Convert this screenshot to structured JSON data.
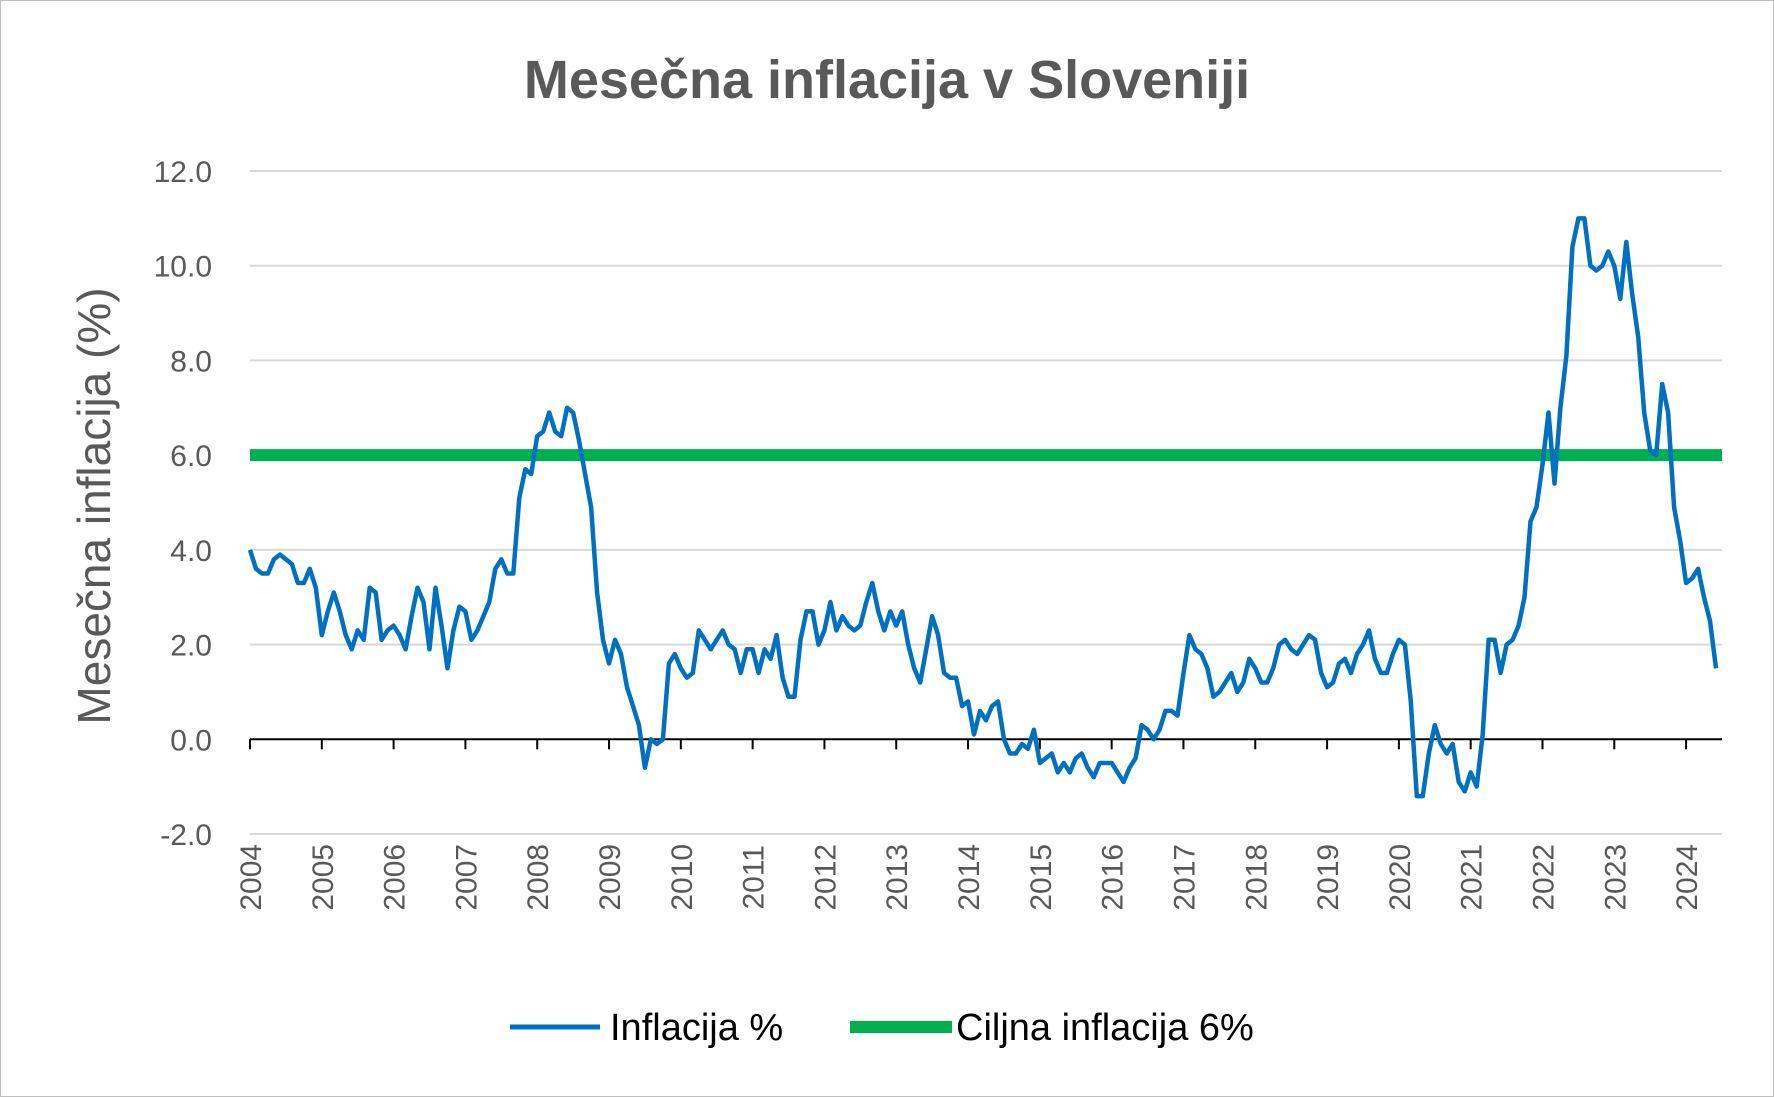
{
  "chart_data": {
    "type": "line",
    "title": "Mesečna inflacija v Sloveniji",
    "xlabel": "",
    "ylabel": "Mesečna inflacija (%)",
    "ylim": [
      -2.0,
      12.0
    ],
    "yticks": [
      "12.0",
      "10.0",
      "8.0",
      "6.0",
      "4.0",
      "2.0",
      "0.0",
      "-2.0"
    ],
    "xticks": [
      "2004",
      "2005",
      "2006",
      "2007",
      "2008",
      "2009",
      "2010",
      "2011",
      "2012",
      "2013",
      "2014",
      "2015",
      "2016",
      "2017",
      "2018",
      "2019",
      "2020",
      "2021",
      "2022",
      "2023",
      "2024"
    ],
    "grid": true,
    "legend_position": "bottom",
    "series": [
      {
        "name": "Inflacija %",
        "color": "#0070c0",
        "x_start": "2004-01",
        "frequency": "monthly",
        "values": [
          4.0,
          3.6,
          3.5,
          3.5,
          3.8,
          3.9,
          3.8,
          3.7,
          3.3,
          3.3,
          3.6,
          3.2,
          2.2,
          2.7,
          3.1,
          2.7,
          2.2,
          1.9,
          2.3,
          2.1,
          3.2,
          3.1,
          2.1,
          2.3,
          2.4,
          2.2,
          1.9,
          2.6,
          3.2,
          2.9,
          1.9,
          3.2,
          2.4,
          1.5,
          2.3,
          2.8,
          2.7,
          2.1,
          2.3,
          2.6,
          2.9,
          3.6,
          3.8,
          3.5,
          3.5,
          5.1,
          5.7,
          5.6,
          6.4,
          6.5,
          6.9,
          6.5,
          6.4,
          7.0,
          6.9,
          6.3,
          5.6,
          4.9,
          3.1,
          2.1,
          1.6,
          2.1,
          1.8,
          1.1,
          0.7,
          0.3,
          -0.6,
          0.0,
          -0.1,
          0.0,
          1.6,
          1.8,
          1.5,
          1.3,
          1.4,
          2.3,
          2.1,
          1.9,
          2.1,
          2.3,
          2.0,
          1.9,
          1.4,
          1.9,
          1.9,
          1.4,
          1.9,
          1.7,
          2.2,
          1.3,
          0.9,
          0.9,
          2.1,
          2.7,
          2.7,
          2.0,
          2.3,
          2.9,
          2.3,
          2.6,
          2.4,
          2.3,
          2.4,
          2.9,
          3.3,
          2.7,
          2.3,
          2.7,
          2.4,
          2.7,
          2.0,
          1.5,
          1.2,
          1.9,
          2.6,
          2.2,
          1.4,
          1.3,
          1.3,
          0.7,
          0.8,
          0.1,
          0.6,
          0.4,
          0.7,
          0.8,
          0.0,
          -0.3,
          -0.3,
          -0.1,
          -0.2,
          0.2,
          -0.5,
          -0.4,
          -0.3,
          -0.7,
          -0.5,
          -0.7,
          -0.4,
          -0.3,
          -0.6,
          -0.8,
          -0.5,
          -0.5,
          -0.5,
          -0.7,
          -0.9,
          -0.6,
          -0.4,
          0.3,
          0.2,
          0.0,
          0.2,
          0.6,
          0.6,
          0.5,
          1.4,
          2.2,
          1.9,
          1.8,
          1.5,
          0.9,
          1.0,
          1.2,
          1.4,
          1.0,
          1.2,
          1.7,
          1.5,
          1.2,
          1.2,
          1.5,
          2.0,
          2.1,
          1.9,
          1.8,
          2.0,
          2.2,
          2.1,
          1.4,
          1.1,
          1.2,
          1.6,
          1.7,
          1.4,
          1.8,
          2.0,
          2.3,
          1.7,
          1.4,
          1.4,
          1.8,
          2.1,
          2.0,
          0.8,
          -1.2,
          -1.2,
          -0.3,
          0.3,
          -0.1,
          -0.3,
          -0.1,
          -0.9,
          -1.1,
          -0.7,
          -1.0,
          0.1,
          2.1,
          2.1,
          1.4,
          2.0,
          2.1,
          2.4,
          3.0,
          4.6,
          4.9,
          5.8,
          6.9,
          5.4,
          7.0,
          8.1,
          10.4,
          11.0,
          11.0,
          10.0,
          9.9,
          10.0,
          10.3,
          10.0,
          9.3,
          10.5,
          9.4,
          8.5,
          6.9,
          6.1,
          6.0,
          7.5,
          6.9,
          4.9,
          4.2,
          3.3,
          3.4,
          3.6,
          3.0,
          2.5,
          1.5
        ]
      },
      {
        "name": "Ciljna inflacija 6%",
        "color": "#00b050",
        "values": [
          6.0,
          6.0
        ]
      }
    ]
  }
}
